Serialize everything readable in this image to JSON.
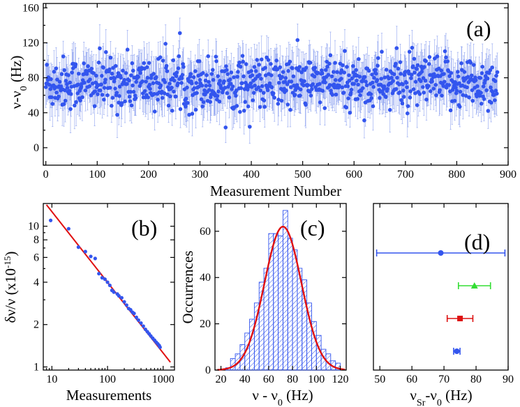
{
  "colors": {
    "marker_blue": "#3355ee",
    "fit_red": "#e01010",
    "hist_hatch": "#3355ee",
    "green": "#33dd33",
    "red": "#dd1111"
  },
  "chart_data": [
    {
      "panel": "a",
      "type": "scatter",
      "panel_label": "(a)",
      "xlabel": "Measurement Number",
      "ylabel_parts": {
        "base": "ν-ν",
        "sub": "0",
        "tail": " (Hz)"
      },
      "xlim": [
        -5,
        900
      ],
      "ylim": [
        -20,
        165
      ],
      "xticks": [
        "0",
        "100",
        "200",
        "300",
        "400",
        "500",
        "600",
        "700",
        "800",
        "900"
      ],
      "yticks": [
        "0",
        "40",
        "80",
        "120",
        "160"
      ],
      "n_points": 880,
      "mean": 74,
      "spread_sd": 15,
      "typical_error_bar": 22,
      "points_note": "880 measurements scattered around ~74 Hz with error bars"
    },
    {
      "panel": "b",
      "type": "scatter",
      "scale": "log-log",
      "panel_label": "(b)",
      "xlabel": "Measurements",
      "ylabel_parts": {
        "base": "δν/ν (x10",
        "sup": "-15",
        "tail": ")"
      },
      "xticks": [
        "10",
        "100",
        "1000"
      ],
      "yticks": [
        "1",
        "2",
        "4",
        "6",
        "8",
        "10"
      ],
      "xlim": [
        7,
        1600
      ],
      "ylim": [
        0.95,
        14.5
      ],
      "fit_line": {
        "x": [
          8,
          1350
        ],
        "y": [
          14.2,
          1.08
        ]
      },
      "points": [
        [
          9.5,
          11.0
        ],
        [
          20,
          9.6
        ],
        [
          30,
          7.1
        ],
        [
          40,
          6.6
        ],
        [
          50,
          6.1
        ],
        [
          60,
          5.9
        ],
        [
          70,
          4.6
        ],
        [
          80,
          4.3
        ],
        [
          90,
          4.2
        ],
        [
          100,
          4.0
        ],
        [
          110,
          3.8
        ],
        [
          120,
          3.5
        ],
        [
          130,
          3.4
        ],
        [
          150,
          3.3
        ],
        [
          160,
          3.2
        ],
        [
          180,
          3.1
        ],
        [
          200,
          2.9
        ],
        [
          220,
          2.75
        ],
        [
          240,
          2.6
        ],
        [
          260,
          2.55
        ],
        [
          280,
          2.45
        ],
        [
          300,
          2.4
        ],
        [
          330,
          2.25
        ],
        [
          360,
          2.15
        ],
        [
          400,
          2.05
        ],
        [
          440,
          1.95
        ],
        [
          480,
          1.85
        ],
        [
          520,
          1.78
        ],
        [
          560,
          1.72
        ],
        [
          600,
          1.66
        ],
        [
          650,
          1.6
        ],
        [
          700,
          1.55
        ],
        [
          750,
          1.5
        ],
        [
          800,
          1.46
        ],
        [
          850,
          1.42
        ],
        [
          880,
          1.38
        ]
      ]
    },
    {
      "panel": "c",
      "type": "bar",
      "panel_label": "(c)",
      "xlabel_parts": {
        "base": "ν - ν",
        "sub": "0",
        "tail": " (Hz)"
      },
      "ylabel": "Occurrences",
      "xlim": [
        15,
        125
      ],
      "ylim": [
        0,
        72
      ],
      "xticks": [
        "20",
        "40",
        "60",
        "80",
        "100",
        "120"
      ],
      "yticks": [
        "0",
        "20",
        "40",
        "60"
      ],
      "bin_width": 4,
      "bins_start": [
        24,
        28,
        32,
        36,
        40,
        44,
        48,
        52,
        56,
        60,
        64,
        68,
        72,
        76,
        80,
        84,
        88,
        92,
        96,
        100,
        104,
        108,
        112,
        116
      ],
      "values": [
        1,
        5,
        7,
        11,
        16,
        22,
        29,
        38,
        44,
        59,
        59,
        58,
        69,
        57,
        52,
        44,
        39,
        29,
        21,
        15,
        9,
        7,
        4,
        3
      ],
      "gaussian_fit": {
        "mean": 72,
        "sigma": 15.5,
        "amplitude": 62
      }
    },
    {
      "panel": "d",
      "type": "scatter",
      "panel_label": "(d)",
      "xlabel_parts": {
        "base": "ν",
        "sub1": "Sr",
        "mid": "-ν",
        "sub2": "0",
        "tail": " (Hz)"
      },
      "xlim": [
        48,
        90
      ],
      "xticks": [
        "50",
        "60",
        "70",
        "80",
        "90"
      ],
      "points": [
        {
          "x": 69,
          "err": 20,
          "marker": "circle",
          "color": "#3355ee"
        },
        {
          "x": 79.5,
          "err": 5,
          "marker": "triangle",
          "color": "#33dd33"
        },
        {
          "x": 75,
          "err": 4,
          "marker": "square",
          "color": "#dd1111"
        },
        {
          "x": 74,
          "err": 1,
          "marker": "circle",
          "color": "#3355ee"
        }
      ]
    }
  ]
}
